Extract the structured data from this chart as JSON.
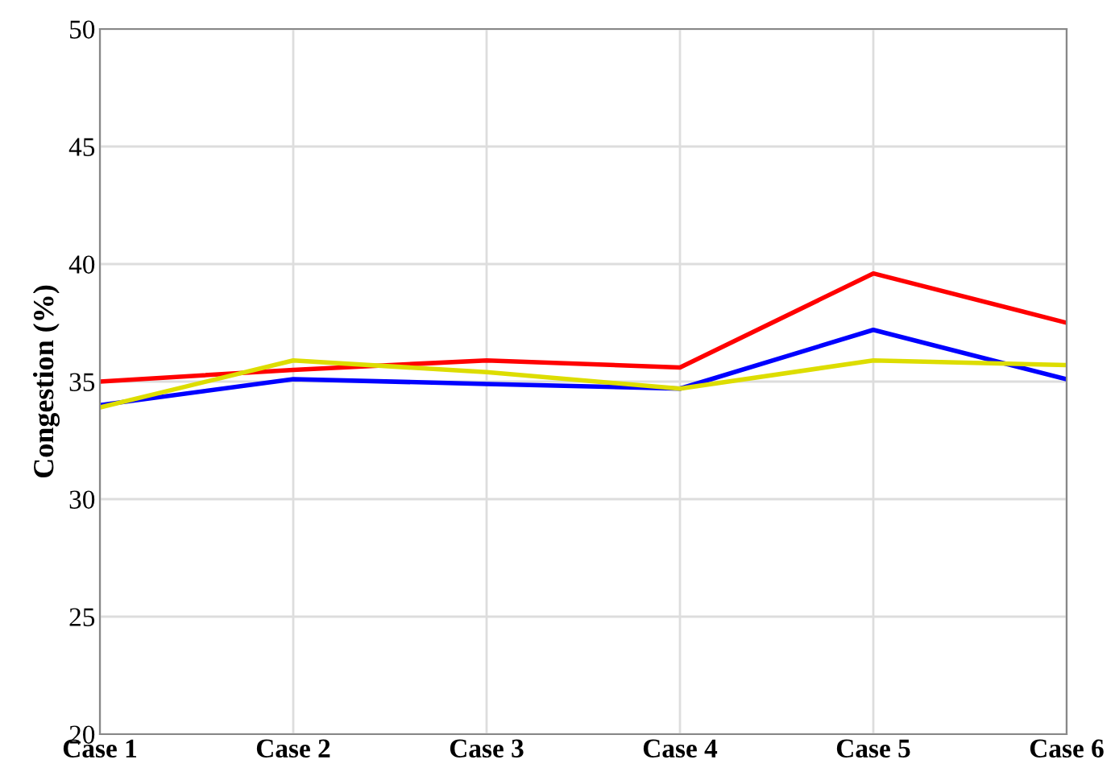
{
  "chart_data": {
    "type": "line",
    "ylabel": "Congestion (%)",
    "categories": [
      "Case 1",
      "Case 2",
      "Case 3",
      "Case 4",
      "Case 5",
      "Case 6"
    ],
    "series": [
      {
        "color": "#ff0000",
        "values": [
          35.0,
          35.5,
          35.9,
          35.6,
          39.6,
          37.5
        ]
      },
      {
        "color": "#0000ff",
        "values": [
          34.0,
          35.1,
          34.9,
          34.7,
          37.2,
          35.1
        ]
      },
      {
        "color": "#dddd00",
        "values": [
          33.9,
          35.9,
          35.4,
          34.7,
          35.9,
          35.7
        ]
      }
    ],
    "ylim": [
      20,
      50
    ],
    "yticks": [
      20,
      25,
      30,
      35,
      40,
      45,
      50
    ],
    "grid": true,
    "legend": false,
    "marker": "none",
    "line_style": "solid"
  }
}
